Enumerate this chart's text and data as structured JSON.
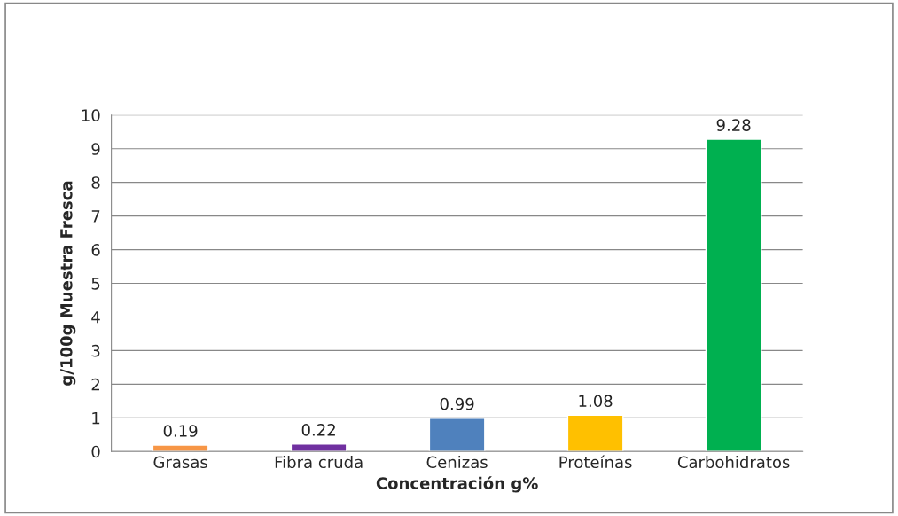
{
  "chart_data": {
    "type": "bar",
    "xlabel": "Concentración g%",
    "ylabel": "g/100g Muestra Fresca",
    "categories": [
      "Grasas",
      "Fibra cruda",
      "Cenizas",
      "Proteínas",
      "Carbohidratos"
    ],
    "values": [
      0.19,
      0.22,
      0.99,
      1.08,
      9.28
    ],
    "colors": [
      "#f79646",
      "#7030a0",
      "#4f81bd",
      "#ffc000",
      "#00b050"
    ],
    "ylim": [
      0,
      10
    ],
    "yticks": [
      0,
      1,
      2,
      3,
      4,
      5,
      6,
      7,
      8,
      9,
      10
    ],
    "grid": "y",
    "data_labels": true
  }
}
